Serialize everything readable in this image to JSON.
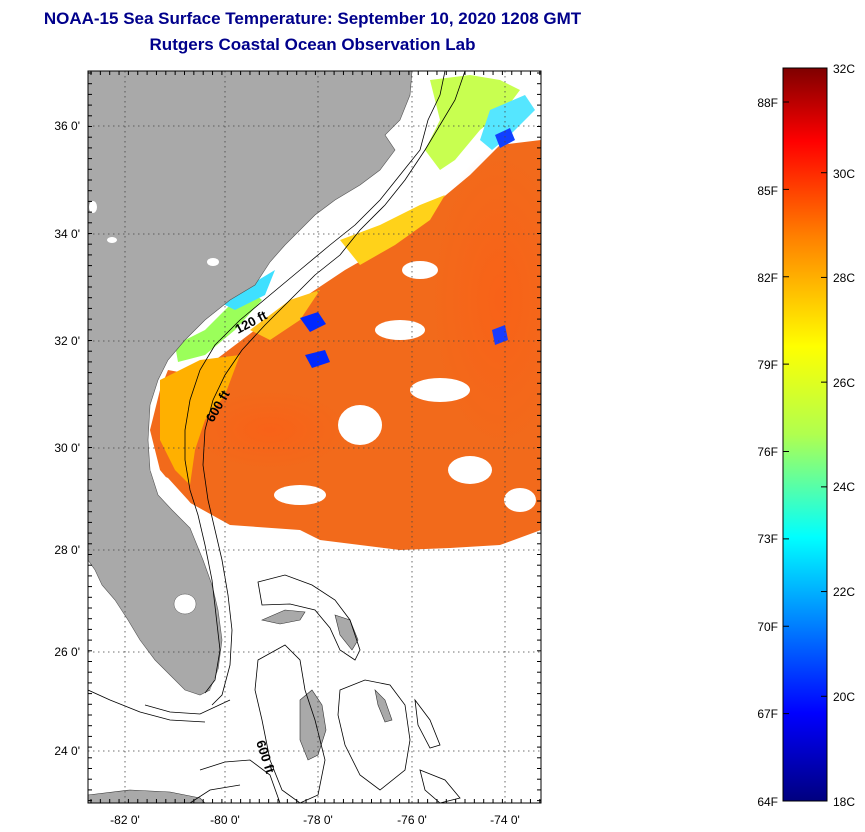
{
  "title": {
    "line1": "NOAA-15 Sea Surface Temperature:  September 10, 2020 1208 GMT",
    "line2": "Rutgers Coastal Ocean Observation Lab"
  },
  "map": {
    "lat_ticks": [
      "36 0'",
      "34 0'",
      "32 0'",
      "30 0'",
      "28 0'",
      "26 0'",
      "24 0'"
    ],
    "lon_ticks": [
      "-82 0'",
      "-80 0'",
      "-78 0'",
      "-76 0'",
      "-74 0'"
    ],
    "contour_labels": [
      "120 ft",
      "600 ft",
      "600 ft"
    ]
  },
  "colorbar": {
    "celsius": [
      "32C",
      "30C",
      "28C",
      "26C",
      "24C",
      "22C",
      "20C",
      "18C"
    ],
    "fahrenheit": [
      "88F",
      "85F",
      "82F",
      "79F",
      "76F",
      "73F",
      "70F",
      "67F",
      "64F"
    ],
    "colors": {
      "dark_blue": "#00007f",
      "blue": "#0000ff",
      "cyan": "#00ffff",
      "green_yellow": "#b0ff4f",
      "yellow": "#ffff00",
      "orange": "#ff8000",
      "red": "#ff0000",
      "dark_red": "#7f0000"
    }
  },
  "colors": {
    "land": "#a9a9a9",
    "sst_main": "#f26a1b",
    "title": "#00008b"
  }
}
